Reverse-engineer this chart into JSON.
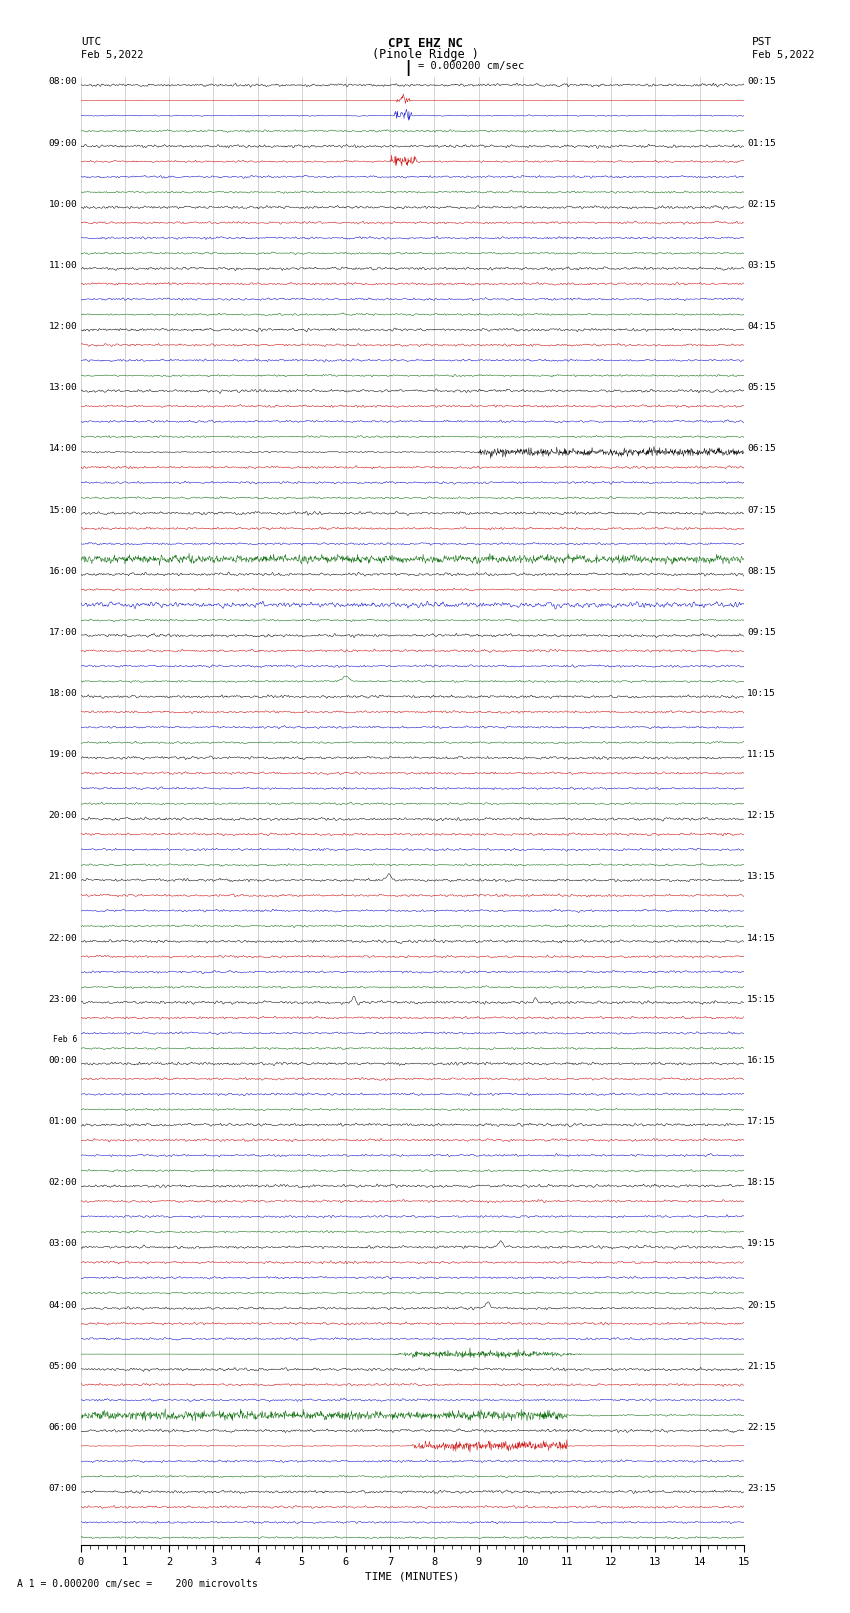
{
  "title_line1": "CPI EHZ NC",
  "title_line2": "(Pinole Ridge )",
  "scale_text": "= 0.000200 cm/sec",
  "xlabel": "TIME (MINUTES)",
  "footer_text": "1 = 0.000200 cm/sec =    200 microvolts",
  "bg_color": "#ffffff",
  "grid_color": "#999999",
  "trace_colors": [
    "#000000",
    "#cc0000",
    "#0000cc",
    "#006600"
  ],
  "fig_width": 8.5,
  "fig_height": 16.13,
  "utc_labels": [
    "08:00",
    "09:00",
    "10:00",
    "11:00",
    "12:00",
    "13:00",
    "14:00",
    "15:00",
    "16:00",
    "17:00",
    "18:00",
    "19:00",
    "20:00",
    "21:00",
    "22:00",
    "23:00",
    "00:00",
    "01:00",
    "02:00",
    "03:00",
    "04:00",
    "05:00",
    "06:00",
    "07:00"
  ],
  "pst_labels": [
    "00:15",
    "01:15",
    "02:15",
    "03:15",
    "04:15",
    "05:15",
    "06:15",
    "07:15",
    "08:15",
    "09:15",
    "10:15",
    "11:15",
    "12:15",
    "13:15",
    "14:15",
    "15:15",
    "16:15",
    "17:15",
    "18:15",
    "19:15",
    "20:15",
    "21:15",
    "22:15",
    "23:15"
  ],
  "feb6_row": 16,
  "xmin": 0,
  "xmax": 15,
  "num_hour_rows": 24,
  "traces_per_hour": 4
}
